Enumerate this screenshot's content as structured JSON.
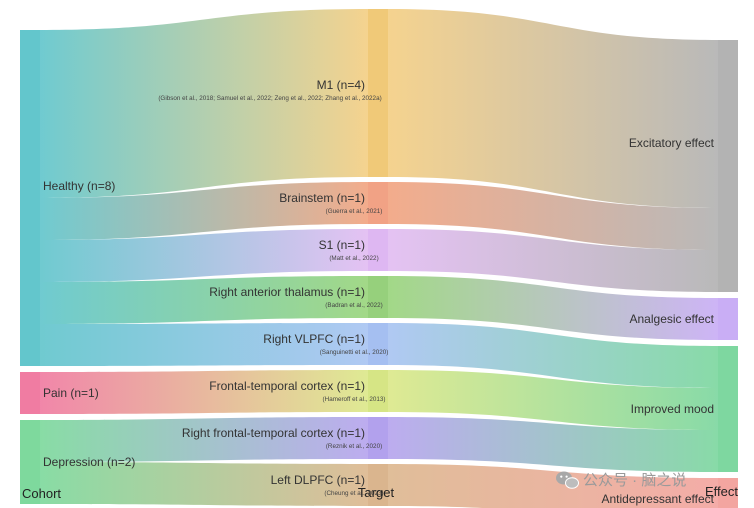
{
  "axes": {
    "cohort": "Cohort",
    "target": "Target",
    "effect": "Effect"
  },
  "cohorts": [
    {
      "id": "healthy",
      "label": "Healthy (n=8)",
      "color": "#63c6cc"
    },
    {
      "id": "pain",
      "label": "Pain (n=1)",
      "color": "#f07ca2"
    },
    {
      "id": "depression",
      "label": "Depression (n=2)",
      "color": "#7ed99d"
    }
  ],
  "targets": [
    {
      "id": "m1",
      "label": "M1 (n=4)",
      "citation": "(Gibson et al., 2018; Samuel et al., 2022; Zeng et al., 2022; Zhang et al., 2022a)",
      "color": "#f4cf85",
      "bar": "#edc060",
      "n": 4
    },
    {
      "id": "brainstem",
      "label": "Brainstem (n=1)",
      "citation": "(Guerra et al., 2021)",
      "color": "#f2a582",
      "bar": "#ee9270",
      "n": 1
    },
    {
      "id": "s1",
      "label": "S1 (n=1)",
      "citation": "(Matt et al., 2022)",
      "color": "#e2bdf2",
      "bar": "#d8aaf0",
      "n": 1
    },
    {
      "id": "thalamus",
      "label": "Right anterior thalamus (n=1)",
      "citation": "(Badran et al., 2022)",
      "color": "#9ad57d",
      "bar": "#84c865",
      "n": 1
    },
    {
      "id": "vlpfc",
      "label": "Right VLPFC (n=1)",
      "citation": "(Sanguinetti  et al., 2020)",
      "color": "#a9c4f2",
      "bar": "#95b4ee",
      "n": 1
    },
    {
      "id": "ftc",
      "label": "Frontal-temporal cortex (n=1)",
      "citation": "(Hameroff et al., 2013)",
      "color": "#dce88a",
      "bar": "#cfe070",
      "n": 1
    },
    {
      "id": "rftc",
      "label": "Right frontal-temporal cortex (n=1)",
      "citation": "(Reznik et al., 2020)",
      "color": "#b7a5ee",
      "bar": "#a590ea",
      "n": 1
    },
    {
      "id": "ldlpfc",
      "label": "Left DLPFC (n=1)",
      "citation": "(Cheung et al., 2023)",
      "color": "#ddb890",
      "bar": "#d3a87a",
      "n": 1
    }
  ],
  "effects": [
    {
      "id": "excitatory",
      "label": "Excitatory effect",
      "color": "#b3b3b3",
      "n": 6
    },
    {
      "id": "analgesic",
      "label": "Analgesic effect",
      "color": "#c9aef5",
      "n": 1
    },
    {
      "id": "mood",
      "label": "Improved mood",
      "color": "#7ed7a0",
      "n": 3
    },
    {
      "id": "antidepressant",
      "label": "Antidepressant effect",
      "color": "#f3a5a0",
      "n": 1
    }
  ],
  "links_cohort_target": [
    {
      "source": "healthy",
      "target": "m1",
      "value": 4
    },
    {
      "source": "healthy",
      "target": "brainstem",
      "value": 1
    },
    {
      "source": "healthy",
      "target": "s1",
      "value": 1
    },
    {
      "source": "healthy",
      "target": "thalamus",
      "value": 1
    },
    {
      "source": "healthy",
      "target": "vlpfc",
      "value": 1
    },
    {
      "source": "pain",
      "target": "ftc",
      "value": 1
    },
    {
      "source": "depression",
      "target": "rftc",
      "value": 1
    },
    {
      "source": "depression",
      "target": "ldlpfc",
      "value": 1
    }
  ],
  "links_target_effect": [
    {
      "source": "m1",
      "target": "excitatory",
      "value": 4
    },
    {
      "source": "brainstem",
      "target": "excitatory",
      "value": 1
    },
    {
      "source": "s1",
      "target": "excitatory",
      "value": 1
    },
    {
      "source": "thalamus",
      "target": "analgesic",
      "value": 1
    },
    {
      "source": "vlpfc",
      "target": "mood",
      "value": 1
    },
    {
      "source": "ftc",
      "target": "mood",
      "value": 1
    },
    {
      "source": "rftc",
      "target": "mood",
      "value": 1
    },
    {
      "source": "ldlpfc",
      "target": "antidepressant",
      "value": 1
    }
  ],
  "watermark": {
    "text": "公众号 · 脑之说",
    "icon": "wechat-icon"
  }
}
